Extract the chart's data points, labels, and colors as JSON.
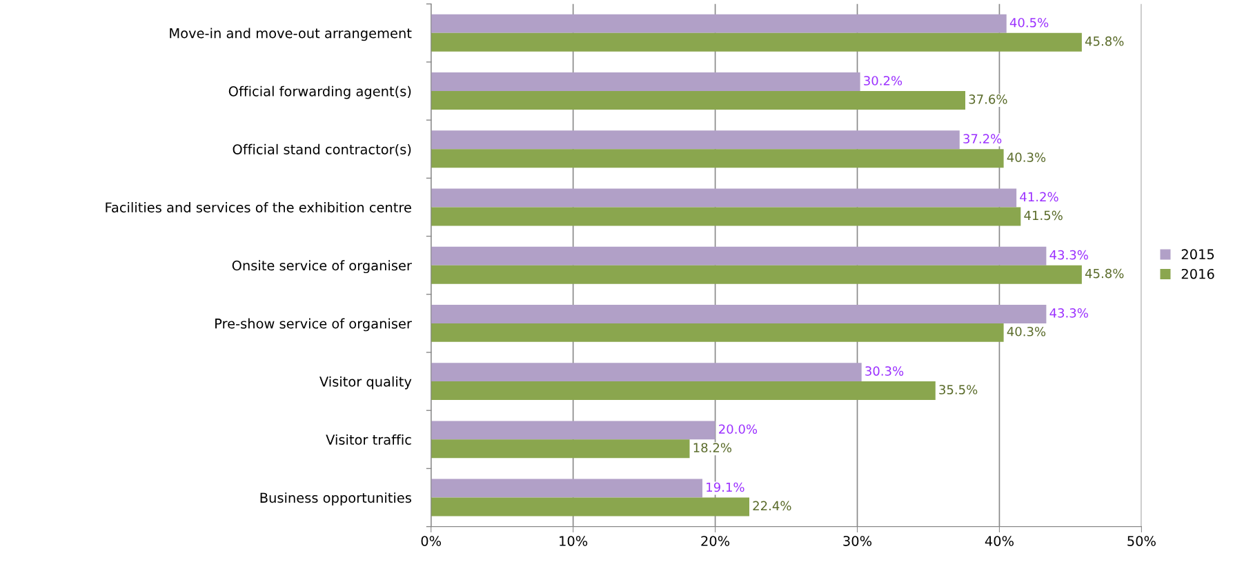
{
  "chart_data": {
    "type": "bar",
    "orientation": "horizontal",
    "categories": [
      "Move-in and move-out arrangement",
      "Official forwarding agent(s)",
      "Official stand contractor(s)",
      "Facilities and services of the exhibition centre",
      "Onsite service of organiser",
      "Pre-show service of organiser",
      "Visitor quality",
      "Visitor traffic",
      "Business opportunities"
    ],
    "series": [
      {
        "name": "2015",
        "color": "#b1a0c7",
        "values": [
          40.5,
          30.2,
          37.2,
          41.2,
          43.3,
          43.3,
          30.3,
          20.0,
          19.1
        ],
        "value_labels": [
          "40.5%",
          "30.2%",
          "37.2%",
          "41.2%",
          "43.3%",
          "43.3%",
          "30.3%",
          "20.0%",
          "19.1%"
        ]
      },
      {
        "name": "2016",
        "color": "#8aa64e",
        "values": [
          45.8,
          37.6,
          40.3,
          41.5,
          45.8,
          40.3,
          35.5,
          18.2,
          22.4
        ],
        "value_labels": [
          "45.8%",
          "37.6%",
          "40.3%",
          "41.5%",
          "45.8%",
          "40.3%",
          "35.5%",
          "18.2%",
          "22.4%"
        ]
      }
    ],
    "xlim": [
      0,
      50
    ],
    "xticks": [
      {
        "value": 0,
        "label": "0%"
      },
      {
        "value": 10,
        "label": "10%"
      },
      {
        "value": 20,
        "label": "20%"
      },
      {
        "value": 30,
        "label": "30%"
      },
      {
        "value": 40,
        "label": "40%"
      },
      {
        "value": 50,
        "label": "50%"
      }
    ],
    "grid": "x",
    "legend": "right"
  }
}
